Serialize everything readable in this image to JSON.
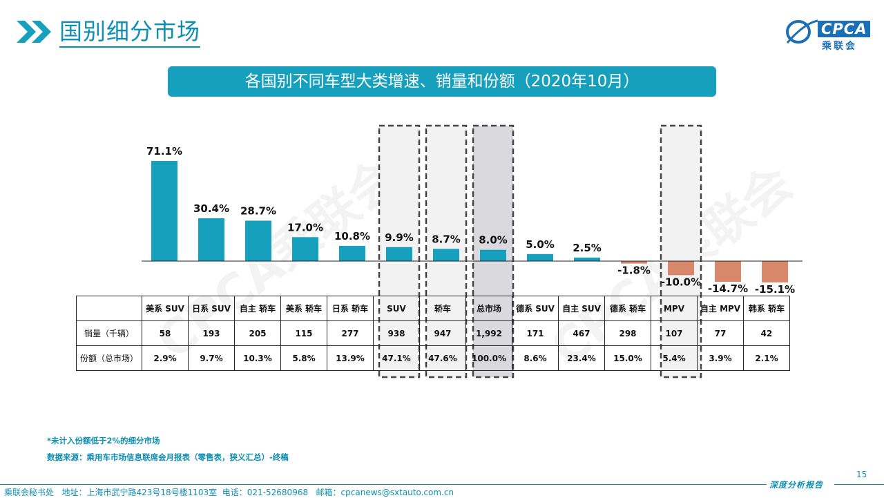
{
  "header": {
    "title": "国别细分市场",
    "logo_text": "CPCA",
    "logo_cn": "乘联会"
  },
  "chart_title": "各国别不同车型大类增速、销量和份额（2020年10月）",
  "watermark": "CPCA乘联会",
  "table": {
    "row_labels": [
      "销量（千辆）",
      "份额（总市场）"
    ]
  },
  "chart_data": {
    "type": "bar",
    "title": "各国别不同车型大类增速、销量和份额（2020年10月）",
    "categories": [
      "美系 SUV",
      "日系 SUV",
      "自主 轿车",
      "美系 轿车",
      "日系 轿车",
      "SUV",
      "轿车",
      "总市场",
      "德系 SUV",
      "自主 SUV",
      "德系 轿车",
      "MPV",
      "自主 MPV",
      "韩系 轿车"
    ],
    "series": [
      {
        "name": "增速",
        "values": [
          71.1,
          30.4,
          28.7,
          17.0,
          10.8,
          9.9,
          8.7,
          8.0,
          5.0,
          2.5,
          -1.8,
          -10.0,
          -14.7,
          -15.1
        ],
        "labels": [
          "71.1%",
          "30.4%",
          "28.7%",
          "17.0%",
          "10.8%",
          "9.9%",
          "8.7%",
          "8.0%",
          "5.0%",
          "2.5%",
          "-1.8%",
          "-10.0%",
          "-14.7%",
          "-15.1%"
        ]
      },
      {
        "name": "销量（千辆）",
        "values": [
          "58",
          "193",
          "205",
          "115",
          "277",
          "938",
          "947",
          "1,992",
          "171",
          "467",
          "298",
          "107",
          "77",
          "42"
        ]
      },
      {
        "name": "份额（总市场）",
        "values": [
          "2.9%",
          "9.7%",
          "10.3%",
          "5.8%",
          "13.9%",
          "47.1%",
          "47.6%",
          "100.0%",
          "8.6%",
          "23.4%",
          "15.0%",
          "5.4%",
          "3.9%",
          "2.1%"
        ]
      }
    ],
    "highlighted_columns": [
      "SUV",
      "轿车",
      "总市场",
      "MPV"
    ],
    "positive_color": "#17a0bd",
    "negative_color": "#d9876b",
    "xlabel": "",
    "ylabel": ""
  },
  "footnotes": [
    "*未计入份额低于2%的细分市场",
    "数据来源：乘用车市场信息联席会月报表（零售表，狭义汇总）-终稿"
  ],
  "footer": {
    "page_number": "15",
    "report_label": "深度分析报告",
    "address": "乘联会秘书处   地址：上海市武宁路423号18号楼1103室  电话：021-52680968   邮箱：cpcanews@sxtauto.com.cn"
  }
}
